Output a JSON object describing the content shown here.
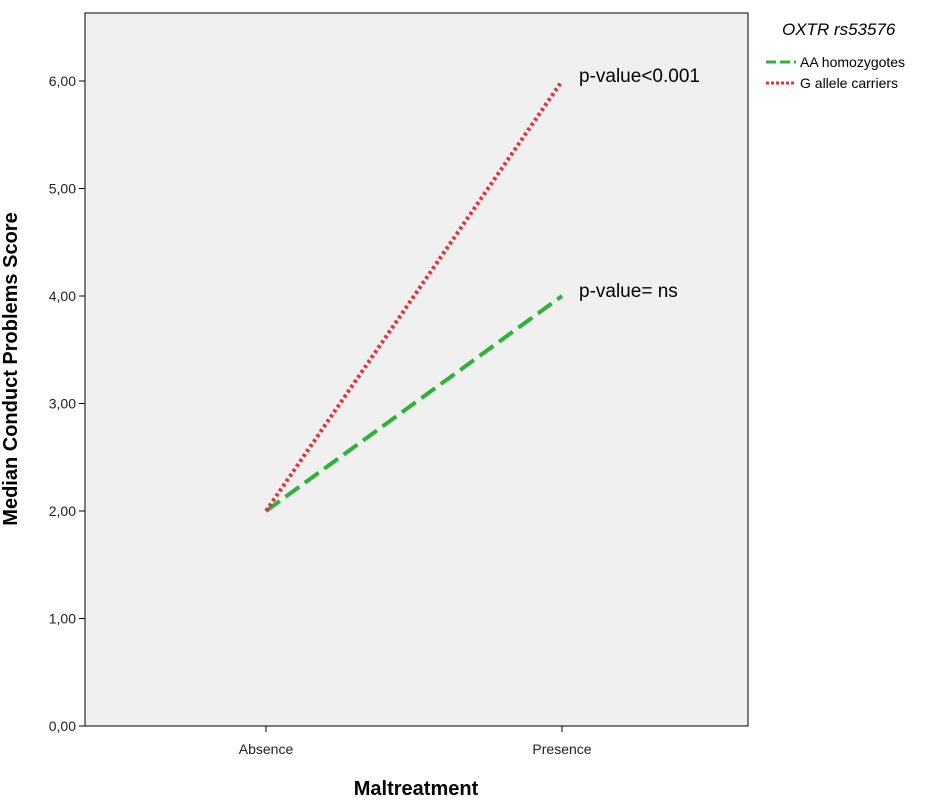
{
  "chart_data": {
    "type": "line",
    "title": "",
    "xlabel": "Maltreatment",
    "ylabel": "Median Conduct Problems Score",
    "categories": [
      "Absence",
      "Presence"
    ],
    "ylim": [
      0,
      6.0
    ],
    "yticks": [
      "0,00",
      "1,00",
      "2,00",
      "3,00",
      "4,00",
      "5,00",
      "6,00"
    ],
    "grid": false,
    "legend": {
      "title": "OXTR rs53576",
      "position": "top-right, outside plot"
    },
    "series": [
      {
        "name": "AA homozygotes",
        "values": [
          2.0,
          4.0
        ],
        "color": "#2db336",
        "style": "dashed"
      },
      {
        "name": "G allele carriers",
        "values": [
          2.0,
          6.0
        ],
        "color": "#e8303a",
        "style": "dotted"
      }
    ],
    "annotations": [
      {
        "text": "p-value<0.001",
        "category": "Presence",
        "y": 6.0
      },
      {
        "text": "p-value= ns",
        "category": "Presence",
        "y": 4.0
      }
    ],
    "plot_background": "#f0f0f0"
  }
}
